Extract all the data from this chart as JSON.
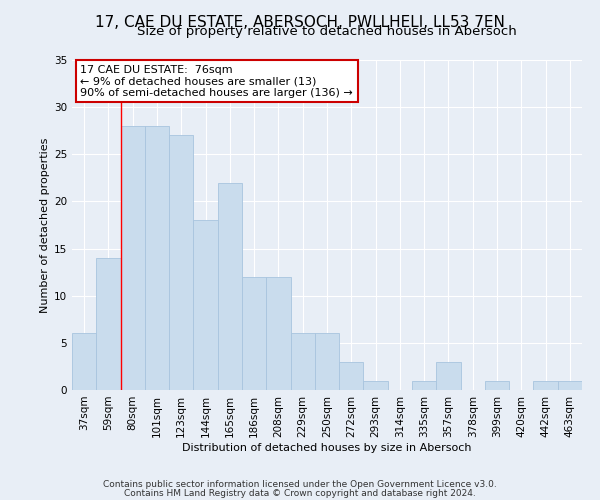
{
  "title": "17, CAE DU ESTATE, ABERSOCH, PWLLHELI, LL53 7EN",
  "subtitle": "Size of property relative to detached houses in Abersoch",
  "xlabel": "Distribution of detached houses by size in Abersoch",
  "ylabel": "Number of detached properties",
  "bar_labels": [
    "37sqm",
    "59sqm",
    "80sqm",
    "101sqm",
    "123sqm",
    "144sqm",
    "165sqm",
    "186sqm",
    "208sqm",
    "229sqm",
    "250sqm",
    "272sqm",
    "293sqm",
    "314sqm",
    "335sqm",
    "357sqm",
    "378sqm",
    "399sqm",
    "420sqm",
    "442sqm",
    "463sqm"
  ],
  "bar_values": [
    6,
    14,
    28,
    28,
    27,
    18,
    22,
    12,
    12,
    6,
    6,
    3,
    1,
    0,
    1,
    3,
    0,
    1,
    0,
    1,
    1
  ],
  "bar_color": "#c9dced",
  "bar_edgecolor": "#a8c4de",
  "annotation_text": "17 CAE DU ESTATE:  76sqm\n← 9% of detached houses are smaller (13)\n90% of semi-detached houses are larger (136) →",
  "annotation_box_color": "#ffffff",
  "annotation_border_color": "#cc0000",
  "red_line_x": 1.5,
  "ylim": [
    0,
    35
  ],
  "yticks": [
    0,
    5,
    10,
    15,
    20,
    25,
    30,
    35
  ],
  "footer_line1": "Contains HM Land Registry data © Crown copyright and database right 2024.",
  "footer_line2": "Contains public sector information licensed under the Open Government Licence v3.0.",
  "bg_color": "#e8eef6",
  "plot_bg_color": "#e8eef6",
  "grid_color": "#ffffff",
  "title_fontsize": 11,
  "subtitle_fontsize": 9.5,
  "axis_fontsize": 8,
  "tick_fontsize": 7.5,
  "footer_fontsize": 6.5,
  "annotation_fontsize": 8
}
